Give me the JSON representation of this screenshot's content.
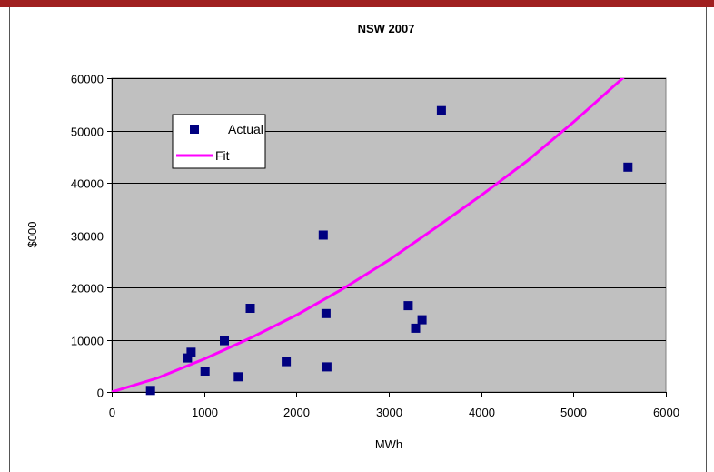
{
  "chart_data": {
    "type": "scatter",
    "title": "NSW 2007",
    "xlabel": "MWh",
    "ylabel": "$000",
    "xlim": [
      0,
      6000
    ],
    "ylim": [
      0,
      60000
    ],
    "xticks": [
      0,
      1000,
      2000,
      3000,
      4000,
      5000,
      6000
    ],
    "yticks": [
      0,
      10000,
      20000,
      30000,
      40000,
      50000,
      60000
    ],
    "grid": "horizontal",
    "legend_position": "top-left",
    "plot_background": "#c0c0c0",
    "series": [
      {
        "name": "Actual",
        "kind": "scatter",
        "marker": "square",
        "color": "#000080",
        "points": [
          [
            420,
            300
          ],
          [
            820,
            6500
          ],
          [
            860,
            7600
          ],
          [
            1010,
            4000
          ],
          [
            1220,
            9800
          ],
          [
            1370,
            2900
          ],
          [
            1500,
            16000
          ],
          [
            1890,
            5800
          ],
          [
            2290,
            30000
          ],
          [
            2320,
            15000
          ],
          [
            2330,
            4800
          ],
          [
            3210,
            16500
          ],
          [
            3290,
            12200
          ],
          [
            3360,
            13800
          ],
          [
            3570,
            53800
          ],
          [
            5590,
            43000
          ]
        ]
      },
      {
        "name": "Fit",
        "kind": "line",
        "color": "#ff00ff",
        "points": [
          [
            0,
            0
          ],
          [
            500,
            2700
          ],
          [
            1000,
            6300
          ],
          [
            1500,
            10300
          ],
          [
            2000,
            14700
          ],
          [
            2500,
            19700
          ],
          [
            3000,
            25200
          ],
          [
            3500,
            31300
          ],
          [
            4000,
            37600
          ],
          [
            4500,
            44200
          ],
          [
            5000,
            51600
          ],
          [
            5500,
            59500
          ],
          [
            5650,
            61800
          ]
        ]
      }
    ]
  },
  "frame": {
    "border_color": "#800000",
    "top_bar_color": "#a02020"
  }
}
